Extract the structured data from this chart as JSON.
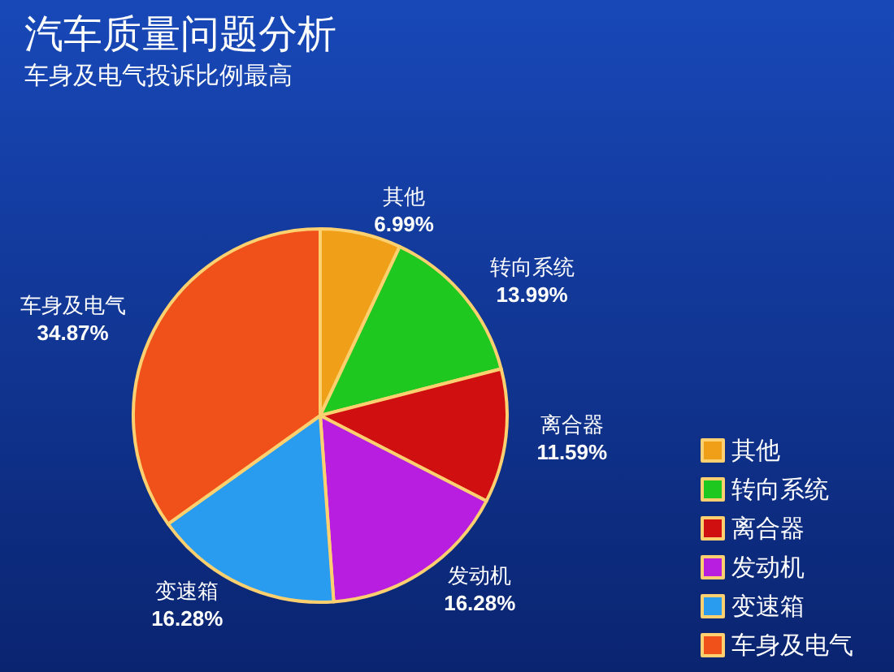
{
  "chart_data": {
    "type": "pie",
    "title": "汽车质量问题分析",
    "subtitle": "车身及电气投诉比例最高",
    "categories": [
      "其他",
      "转向系统",
      "离合器",
      "发动机",
      "变速箱",
      "车身及电气"
    ],
    "values": [
      6.99,
      13.99,
      11.59,
      16.28,
      16.28,
      34.87
    ],
    "value_labels": [
      "6.99%",
      "13.99%",
      "11.59%",
      "16.28%",
      "16.28%",
      "34.87%"
    ],
    "colors": [
      "#f0a018",
      "#1ec81e",
      "#d01010",
      "#b81ee0",
      "#2a9cf0",
      "#f0501a"
    ],
    "legend": "bottom right"
  }
}
